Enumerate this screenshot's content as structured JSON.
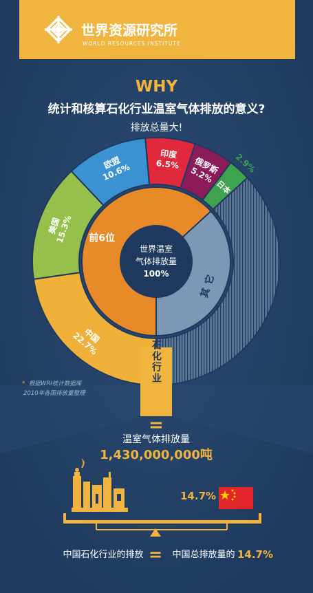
{
  "header": {
    "logo_cn": "世界资源研究所",
    "logo_en": "WORLD RESOURCES INSTITUTE"
  },
  "intro": {
    "why": "WHY",
    "question": "统计和核算石化行业温室气体排放的意义?",
    "answer": "排放总量大!"
  },
  "chart_data": {
    "type": "pie",
    "center_label": [
      "世界温室",
      "气体排放量",
      "100%"
    ],
    "inner_ring": [
      {
        "label": "前6位",
        "value": 63.2
      },
      {
        "label": "其它",
        "value": 36.8
      }
    ],
    "outer_ring": [
      {
        "label": "中国",
        "value": 22.7,
        "display": "22.7%"
      },
      {
        "label": "美国",
        "value": 15.3,
        "display": "15.3%"
      },
      {
        "label": "欧盟",
        "value": 10.6,
        "display": "10.6%"
      },
      {
        "label": "印度",
        "value": 6.5,
        "display": "6.5%"
      },
      {
        "label": "俄罗斯",
        "value": 5.2,
        "display": "5.2%"
      },
      {
        "label": "日本",
        "value": 2.9,
        "display": "2.9%"
      },
      {
        "label": "其它",
        "value": 36.8,
        "display": ""
      }
    ],
    "colors": {
      "china": "#f0b13a",
      "usa": "#95c04c",
      "eu": "#3c93d3",
      "india": "#e0293c",
      "russia": "#8c1b59",
      "japan": "#3fa24f",
      "others": "#5d7897",
      "top6_inner": "#e88a27",
      "others_inner": "#7d98b4",
      "center": "#1f3a5e"
    }
  },
  "source_note": {
    "star": "*",
    "line1": "根据WRI统计数据库",
    "line2": "2010年各国排放量整理"
  },
  "petro": {
    "label": "石化行业",
    "equals": "=",
    "emission_label": "温室气体排放量",
    "emission_value": "1,430,000,000吨"
  },
  "scale": {
    "share": "14.7%",
    "flag": "china-flag"
  },
  "bottom": {
    "left": "中国石化行业的排放",
    "equals": "=",
    "right_prefix": "中国总排放量的",
    "right_value": "14.7%"
  }
}
